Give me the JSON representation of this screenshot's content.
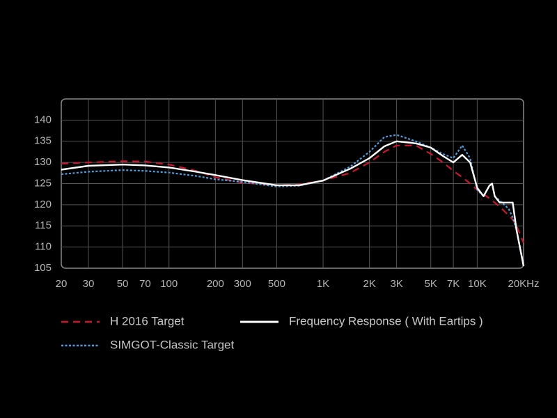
{
  "chart_data": {
    "type": "line",
    "xscale": "log",
    "grid": true,
    "legend": "bottom",
    "xlim": [
      20,
      20000
    ],
    "ylim": [
      105,
      145
    ],
    "yticks": [
      105,
      110,
      115,
      120,
      125,
      130,
      135,
      140
    ],
    "xticks": [
      20,
      30,
      50,
      70,
      100,
      200,
      300,
      500,
      {
        "value": 1000,
        "label": "1K"
      },
      {
        "value": 2000,
        "label": "2K"
      },
      {
        "value": 3000,
        "label": "3K"
      },
      {
        "value": 5000,
        "label": "5K"
      },
      {
        "value": 7000,
        "label": "7K"
      },
      {
        "value": 10000,
        "label": "10K"
      },
      {
        "value": 20000,
        "label": "20KHz"
      }
    ],
    "x": [
      20,
      30,
      50,
      70,
      100,
      150,
      200,
      300,
      500,
      700,
      1000,
      1500,
      2000,
      2500,
      3000,
      4000,
      5000,
      6000,
      7000,
      8000,
      9000,
      10000,
      11000,
      12000,
      12500,
      13000,
      14000,
      15000,
      16000,
      17000,
      18000,
      20000
    ],
    "series": [
      {
        "name": "H 2016 Target",
        "color": "#d0142c",
        "style": "dashed",
        "values": [
          129.7,
          130,
          130.3,
          130.2,
          129.5,
          128,
          126.5,
          125.2,
          124.6,
          124.8,
          125.7,
          127.5,
          130,
          132.5,
          134,
          134,
          132,
          130,
          128,
          126.5,
          125,
          123.5,
          122.5,
          121.5,
          121,
          120.5,
          119.5,
          118.5,
          117.5,
          116.5,
          115,
          111
        ]
      },
      {
        "name": "Frequency Response ( With Eartips )",
        "color": "#ffffff",
        "style": "solid",
        "values": [
          128.3,
          129.2,
          129.5,
          129.3,
          128.8,
          127.8,
          127,
          125.8,
          124.6,
          124.6,
          125.7,
          128.5,
          131,
          133.8,
          135,
          134.5,
          133.5,
          131.5,
          130,
          131.8,
          130,
          124,
          122,
          124.5,
          125,
          122,
          120.5,
          120.5,
          120.5,
          120.5,
          114,
          105.5
        ]
      },
      {
        "name": "SIMGOT-Classic Target",
        "color": "#4a9fe0",
        "style": "dotted",
        "values": [
          127.2,
          127.8,
          128.2,
          128,
          127.6,
          126.8,
          126,
          125.4,
          124.3,
          124.5,
          125.7,
          129,
          132.5,
          136,
          136.5,
          135,
          133.5,
          132,
          131,
          134,
          131,
          123.5,
          122,
          124.5,
          125,
          122,
          121,
          120,
          119,
          117,
          114,
          106
        ]
      }
    ]
  }
}
